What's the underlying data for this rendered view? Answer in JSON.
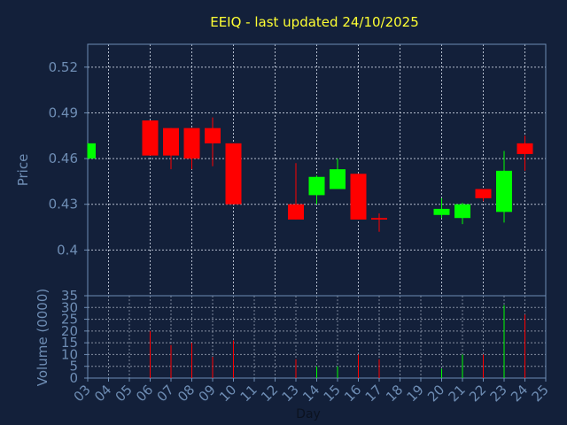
{
  "chart_data": {
    "type": "candlestick",
    "title": "EEIQ - last updated 24/10/2025",
    "xlabel": "Day",
    "price_panel": {
      "ylabel": "Price",
      "ylim": [
        0.37,
        0.535
      ],
      "yticks": [
        0.4,
        0.43,
        0.46,
        0.49,
        0.52
      ],
      "ytick_labels": [
        "0.4",
        "0.43",
        "0.46",
        "0.49",
        "0.52"
      ],
      "grid": true
    },
    "volume_panel": {
      "ylabel": "Volume (0000)",
      "ylim": [
        0,
        35
      ],
      "yticks": [
        0,
        5,
        10,
        15,
        20,
        25,
        30,
        35
      ],
      "ytick_labels": [
        "0",
        "5",
        "10",
        "15",
        "20",
        "25",
        "30",
        "35"
      ],
      "grid": true
    },
    "x_range": [
      3,
      25
    ],
    "x_ticks": [
      3,
      4,
      5,
      6,
      7,
      8,
      9,
      10,
      11,
      12,
      13,
      14,
      15,
      16,
      17,
      18,
      19,
      20,
      21,
      22,
      23,
      24,
      25
    ],
    "x_tick_labels": [
      "03",
      "04",
      "05",
      "06",
      "07",
      "08",
      "09",
      "10",
      "11",
      "12",
      "13",
      "14",
      "15",
      "16",
      "17",
      "18",
      "19",
      "20",
      "21",
      "22",
      "23",
      "24",
      "25"
    ],
    "up_color": "#00ff00",
    "down_color": "#ff0000",
    "candles": [
      {
        "day": 3,
        "open": 0.46,
        "high": 0.47,
        "low": 0.46,
        "close": 0.47,
        "volume": 0
      },
      {
        "day": 6,
        "open": 0.485,
        "high": 0.485,
        "low": 0.462,
        "close": 0.462,
        "volume": 20
      },
      {
        "day": 7,
        "open": 0.48,
        "high": 0.48,
        "low": 0.453,
        "close": 0.462,
        "volume": 14
      },
      {
        "day": 8,
        "open": 0.48,
        "high": 0.48,
        "low": 0.453,
        "close": 0.46,
        "volume": 15
      },
      {
        "day": 9,
        "open": 0.48,
        "high": 0.487,
        "low": 0.455,
        "close": 0.47,
        "volume": 9
      },
      {
        "day": 10,
        "open": 0.47,
        "high": 0.47,
        "low": 0.43,
        "close": 0.43,
        "volume": 16
      },
      {
        "day": 13,
        "open": 0.43,
        "high": 0.457,
        "low": 0.42,
        "close": 0.42,
        "volume": 8
      },
      {
        "day": 14,
        "open": 0.436,
        "high": 0.449,
        "low": 0.43,
        "close": 0.448,
        "volume": 5
      },
      {
        "day": 15,
        "open": 0.44,
        "high": 0.46,
        "low": 0.44,
        "close": 0.453,
        "volume": 5
      },
      {
        "day": 16,
        "open": 0.45,
        "high": 0.45,
        "low": 0.42,
        "close": 0.42,
        "volume": 10
      },
      {
        "day": 17,
        "open": 0.421,
        "high": 0.424,
        "low": 0.412,
        "close": 0.42,
        "volume": 8
      },
      {
        "day": 20,
        "open": 0.423,
        "high": 0.434,
        "low": 0.421,
        "close": 0.427,
        "volume": 4
      },
      {
        "day": 21,
        "open": 0.421,
        "high": 0.431,
        "low": 0.417,
        "close": 0.43,
        "volume": 10
      },
      {
        "day": 22,
        "open": 0.44,
        "high": 0.44,
        "low": 0.432,
        "close": 0.434,
        "volume": 10
      },
      {
        "day": 23,
        "open": 0.425,
        "high": 0.465,
        "low": 0.418,
        "close": 0.452,
        "volume": 31
      },
      {
        "day": 24,
        "open": 0.47,
        "high": 0.475,
        "low": 0.452,
        "close": 0.463,
        "volume": 27
      }
    ]
  },
  "colors": {
    "background": "#13203a",
    "axis": "#6e8db4",
    "grid": "#cfd8e6",
    "title": "#ffff33"
  }
}
